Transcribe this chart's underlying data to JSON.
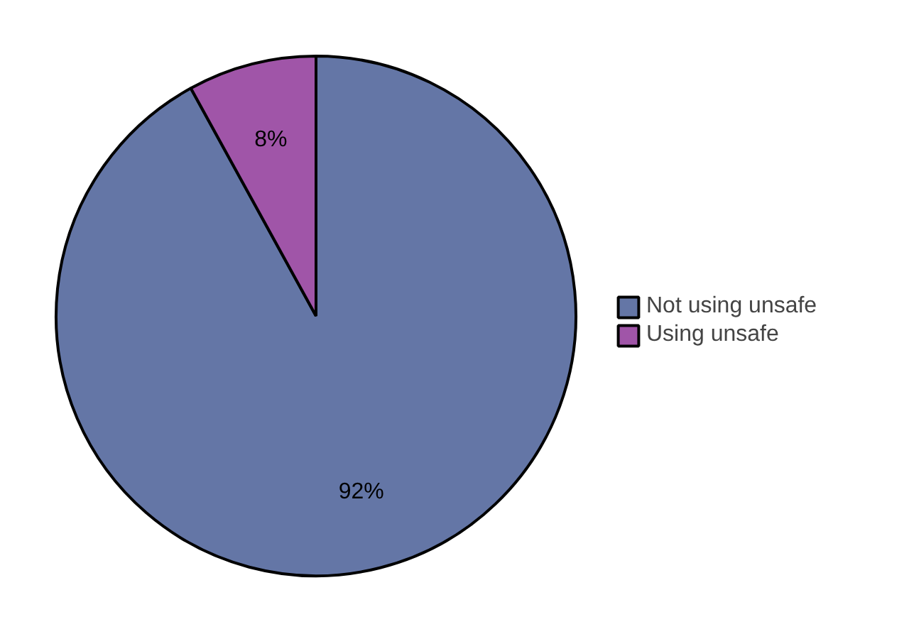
{
  "chart_data": {
    "type": "pie",
    "categories": [
      "Not using unsafe",
      "Using unsafe"
    ],
    "values": [
      92,
      8
    ],
    "colors": [
      "#6476a6",
      "#a055a8"
    ],
    "value_labels": [
      "92%",
      "8%"
    ],
    "legend": "right"
  }
}
